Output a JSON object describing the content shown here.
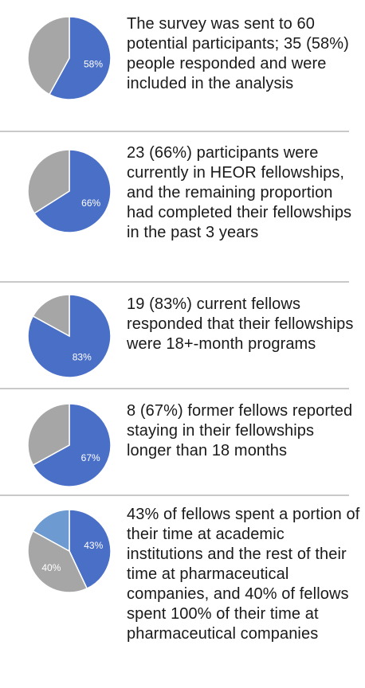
{
  "colors": {
    "blue": "#4a6fc7",
    "gray": "#a6a6a6",
    "light_blue": "#6c9ad1",
    "label": "#ffffff",
    "divider": "#c9c9c9"
  },
  "chart_data": [
    {
      "type": "pie",
      "slices": [
        {
          "label": "58%",
          "value": 58,
          "color": "#4a6fc7",
          "show_label": true
        },
        {
          "label": "",
          "value": 42,
          "color": "#a6a6a6",
          "show_label": false
        }
      ],
      "caption": "The survey was sent to 60 potential participants; 35 (58%) people responded and were included in the analysis"
    },
    {
      "type": "pie",
      "slices": [
        {
          "label": "66%",
          "value": 66,
          "color": "#4a6fc7",
          "show_label": true
        },
        {
          "label": "",
          "value": 34,
          "color": "#a6a6a6",
          "show_label": false
        }
      ],
      "caption": "23 (66%) participants were currently in HEOR fellowships, and the remaining proportion had completed their fellowships in the past 3 years"
    },
    {
      "type": "pie",
      "slices": [
        {
          "label": "83%",
          "value": 83,
          "color": "#4a6fc7",
          "show_label": true
        },
        {
          "label": "",
          "value": 17,
          "color": "#a6a6a6",
          "show_label": false
        }
      ],
      "caption": "19 (83%) current fellows responded that their fellowships were 18+-month programs"
    },
    {
      "type": "pie",
      "slices": [
        {
          "label": "67%",
          "value": 67,
          "color": "#4a6fc7",
          "show_label": true
        },
        {
          "label": "",
          "value": 33,
          "color": "#a6a6a6",
          "show_label": false
        }
      ],
      "caption": "8 (67%) former fellows reported staying in their fellowships longer than 18 months"
    },
    {
      "type": "pie",
      "slices": [
        {
          "label": "43%",
          "value": 43,
          "color": "#4a6fc7",
          "show_label": true
        },
        {
          "label": "40%",
          "value": 40,
          "color": "#a6a6a6",
          "show_label": true
        },
        {
          "label": "",
          "value": 17,
          "color": "#6c9ad1",
          "show_label": false
        }
      ],
      "caption": "43% of fellows spent a portion of their time at academic institutions and the rest of their time at pharmaceutical companies, and 40% of fellows spent 100% of their time at pharmaceutical companies"
    }
  ]
}
